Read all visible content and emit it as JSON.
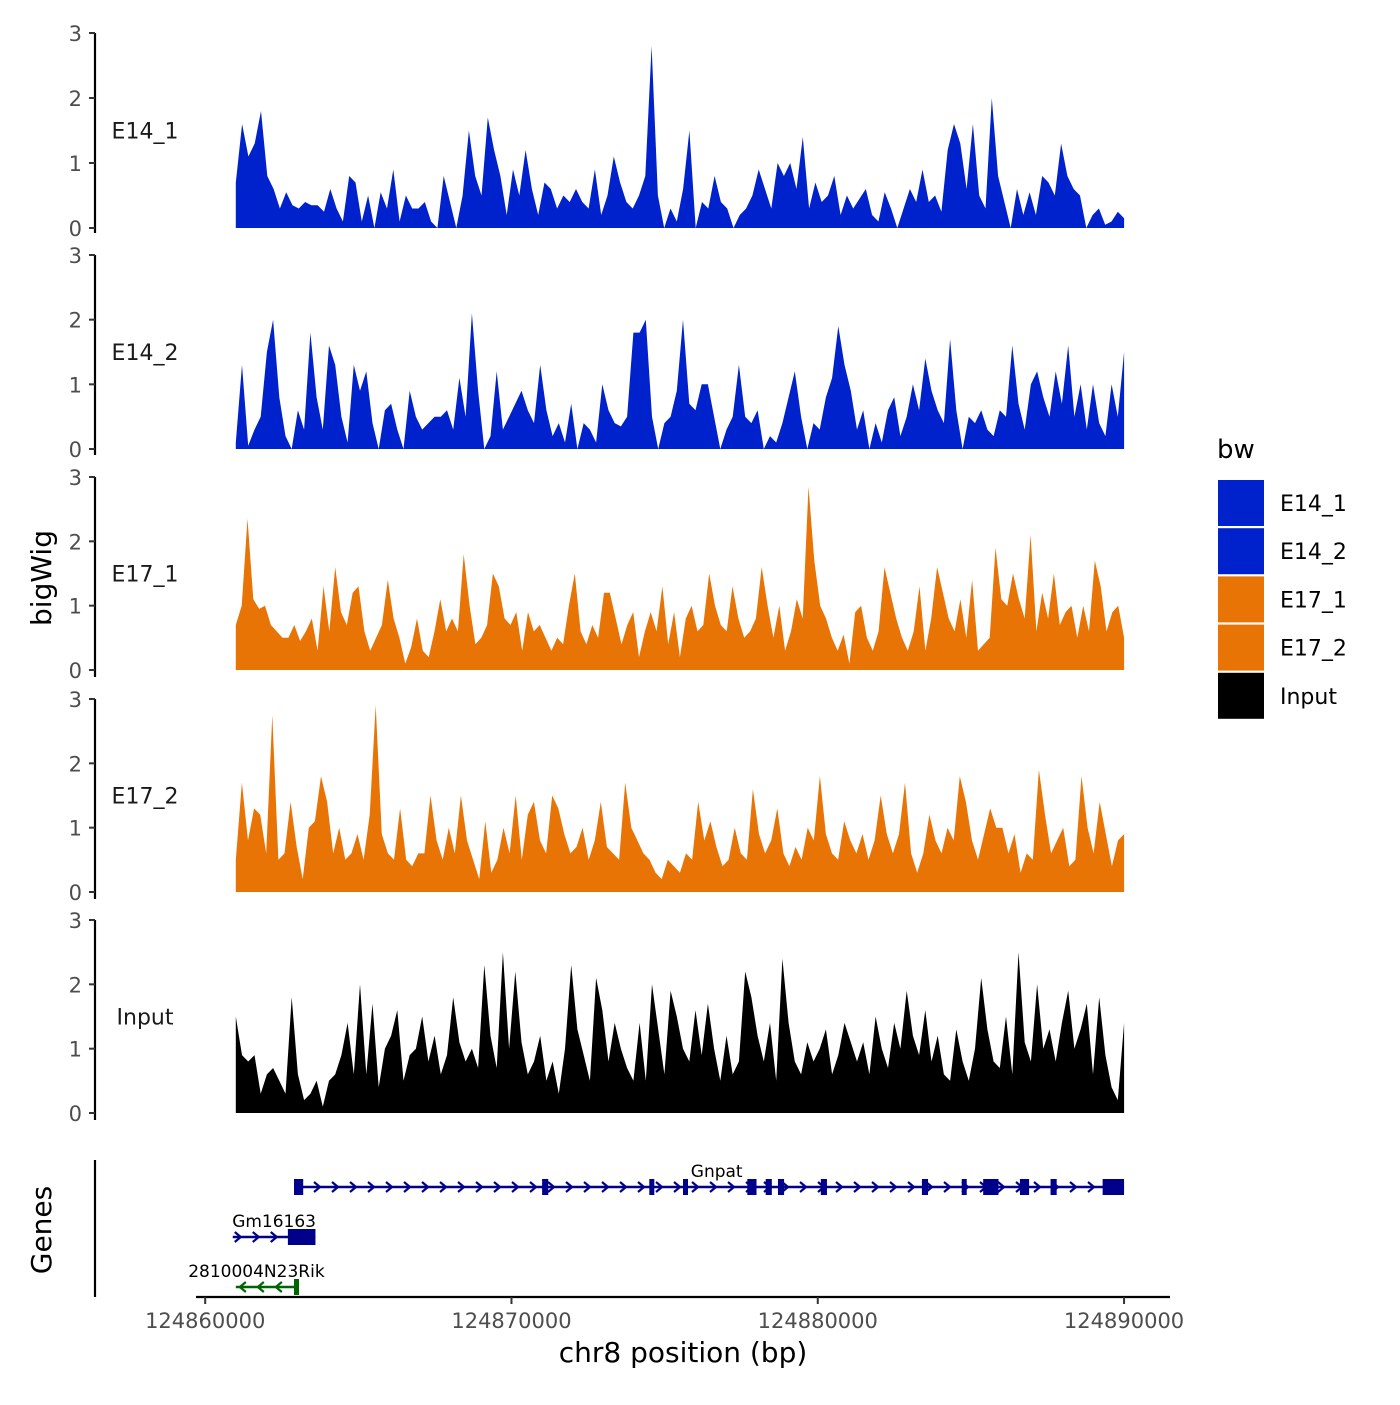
{
  "chart_data": {
    "type": "area",
    "chromosome": "chr8",
    "xlabel": "chr8 position (bp)",
    "ylabel": "bigWig",
    "genes_label": "Genes",
    "xlim": [
      124859700,
      124891500
    ],
    "x_ticks": [
      124860000,
      124870000,
      124880000,
      124890000
    ],
    "x_tick_labels": [
      "124860000",
      "124870000",
      "124880000",
      "124890000"
    ],
    "ylim": [
      0,
      3
    ],
    "y_ticks": [
      0,
      1,
      2,
      3
    ],
    "y_tick_labels": [
      "0",
      "1",
      "2",
      "3"
    ],
    "legend": {
      "title": "bw",
      "position": "right",
      "entries": [
        {
          "label": "E14_1",
          "color": "#0022CC"
        },
        {
          "label": "E14_2",
          "color": "#0022CC"
        },
        {
          "label": "E17_1",
          "color": "#E87405"
        },
        {
          "label": "E17_2",
          "color": "#E87405"
        },
        {
          "label": "Input",
          "color": "#000000"
        }
      ]
    },
    "series": [
      {
        "name": "E14_1",
        "color": "#0022CC",
        "x_start": 124861000,
        "x_end": 124890000,
        "values": [
          0.7,
          1.6,
          1.1,
          1.3,
          1.8,
          0.8,
          0.6,
          0.3,
          0.55,
          0.35,
          0.3,
          0.4,
          0.35,
          0.35,
          0.25,
          0.6,
          0.3,
          0.1,
          0.8,
          0.7,
          0.1,
          0.5,
          0,
          0.55,
          0.3,
          0.9,
          0.1,
          0.5,
          0.3,
          0.3,
          0.4,
          0.1,
          0,
          0.8,
          0.4,
          0,
          0.5,
          1.5,
          0.8,
          0.5,
          1.7,
          1.2,
          0.8,
          0.2,
          0.9,
          0.5,
          1.2,
          0.6,
          0.2,
          0.7,
          0.6,
          0.3,
          0.5,
          0.4,
          0.6,
          0.4,
          0.3,
          0.9,
          0.2,
          0.5,
          1.1,
          0.7,
          0.4,
          0.3,
          0.5,
          0.8,
          2.8,
          0.5,
          0,
          0.3,
          0.1,
          0.6,
          1.5,
          0,
          0.4,
          0.3,
          0.8,
          0.4,
          0.3,
          0,
          0.2,
          0.3,
          0.5,
          0.9,
          0.6,
          0.3,
          1.0,
          0.8,
          1.0,
          0.6,
          1.4,
          0.3,
          0.7,
          0.4,
          0.5,
          0.8,
          0.2,
          0.5,
          0.3,
          0.45,
          0.6,
          0.2,
          0.1,
          0.55,
          0.3,
          0,
          0.3,
          0.6,
          0.4,
          0.9,
          0.4,
          0.5,
          0.25,
          1.2,
          1.6,
          1.3,
          0.6,
          1.6,
          0.5,
          0.3,
          2.0,
          0.8,
          0.4,
          0,
          0.6,
          0.2,
          0.55,
          0.2,
          0.8,
          0.7,
          0.5,
          1.3,
          0.8,
          0.6,
          0.5,
          0,
          0.2,
          0.3,
          0.05,
          0.1,
          0.25,
          0.15
        ]
      },
      {
        "name": "E14_2",
        "color": "#0022CC",
        "x_start": 124861000,
        "x_end": 124890000,
        "values": [
          0.1,
          1.3,
          0.05,
          0.3,
          0.5,
          1.5,
          2.0,
          0.8,
          0.2,
          0,
          0.6,
          0.3,
          1.8,
          0.8,
          0.3,
          1.6,
          1.3,
          0.5,
          0.1,
          1.3,
          0.9,
          1.2,
          0.4,
          0,
          0.6,
          0.7,
          0.3,
          0,
          0.9,
          0.5,
          0.3,
          0.4,
          0.5,
          0.5,
          0.6,
          0.3,
          1.1,
          0.5,
          2.1,
          0.9,
          0,
          0.2,
          1.2,
          0.3,
          0.5,
          0.7,
          0.9,
          0.6,
          0.4,
          1.3,
          0.6,
          0.2,
          0.4,
          0.1,
          0.7,
          0,
          0.4,
          0.3,
          0.1,
          1.0,
          0.6,
          0.4,
          0.35,
          0.5,
          1.8,
          1.8,
          2.0,
          0.5,
          0,
          0.4,
          0.5,
          0.9,
          2.0,
          0.7,
          0.6,
          1.0,
          1.0,
          0.5,
          0,
          0.3,
          0.5,
          1.3,
          0.5,
          0.4,
          0.6,
          0,
          0.2,
          0.1,
          0.4,
          0.8,
          1.2,
          0.5,
          0,
          0.4,
          0.3,
          0.8,
          1.1,
          1.9,
          1.3,
          0.9,
          0.3,
          0.6,
          0,
          0.4,
          0.1,
          0.6,
          0.8,
          0.2,
          0.5,
          1.0,
          0.6,
          1.4,
          0.9,
          0.6,
          0.4,
          1.7,
          0.6,
          0,
          0.5,
          0.4,
          0.6,
          0.3,
          0.2,
          0.6,
          0.5,
          1.6,
          0.7,
          0.3,
          1.0,
          1.2,
          0.8,
          0.5,
          1.2,
          0.7,
          1.6,
          0.5,
          1.0,
          0.3,
          1.0,
          0.4,
          0.2,
          1.0,
          0.5,
          1.5
        ]
      },
      {
        "name": "E17_1",
        "color": "#E87405",
        "x_start": 124861000,
        "x_end": 124890000,
        "values": [
          0.7,
          1.0,
          2.35,
          1.1,
          0.95,
          1.0,
          0.7,
          0.6,
          0.5,
          0.5,
          0.7,
          0.45,
          0.6,
          0.8,
          0.3,
          1.3,
          0.6,
          1.6,
          0.9,
          0.7,
          1.2,
          1.3,
          0.6,
          0.3,
          0.5,
          0.7,
          1.4,
          0.8,
          0.5,
          0.1,
          0.35,
          0.8,
          0.3,
          0.2,
          0.6,
          1.1,
          0.6,
          0.8,
          0.6,
          1.8,
          1.0,
          0.4,
          0.5,
          0.7,
          1.5,
          1.3,
          0.8,
          0.7,
          0.9,
          0.3,
          0.9,
          0.6,
          0.7,
          0.5,
          0.3,
          0.5,
          0.4,
          1.0,
          1.5,
          0.6,
          0.4,
          0.7,
          0.5,
          1.2,
          1.2,
          0.8,
          0.4,
          0.7,
          0.9,
          0.2,
          0.6,
          0.9,
          0.6,
          1.3,
          0.4,
          0.9,
          0.2,
          0.8,
          1.0,
          0.6,
          0.7,
          1.5,
          1.0,
          0.7,
          0.6,
          1.3,
          0.8,
          0.5,
          0.6,
          0.8,
          1.6,
          1.0,
          0.5,
          1.0,
          0.3,
          0.6,
          1.1,
          0.8,
          2.85,
          1.7,
          1.0,
          0.8,
          0.5,
          0.3,
          0.55,
          0.1,
          0.9,
          1.0,
          0.5,
          0.3,
          0.6,
          1.6,
          1.2,
          0.8,
          0.5,
          0.3,
          0.6,
          1.3,
          0.3,
          0.8,
          1.6,
          1.2,
          0.8,
          0.6,
          1.1,
          0.5,
          1.4,
          0.3,
          0.4,
          0.5,
          1.9,
          1.1,
          1.0,
          1.5,
          1.1,
          0.8,
          2.1,
          0.6,
          1.2,
          0.8,
          1.5,
          0.7,
          0.9,
          1.0,
          0.5,
          1.0,
          0.6,
          1.7,
          1.3,
          0.6,
          0.9,
          1.0,
          0.5
        ]
      },
      {
        "name": "E17_2",
        "color": "#E87405",
        "x_start": 124861000,
        "x_end": 124890000,
        "values": [
          0.5,
          1.7,
          0.8,
          1.3,
          1.2,
          0.6,
          2.75,
          0.5,
          0.6,
          1.4,
          0.7,
          0.2,
          1.0,
          1.1,
          1.8,
          1.4,
          0.6,
          1.0,
          0.5,
          0.6,
          0.9,
          0.5,
          1.2,
          2.9,
          0.9,
          0.6,
          0.5,
          1.3,
          0.5,
          0.4,
          0.6,
          0.6,
          1.5,
          0.8,
          0.5,
          1.0,
          0.6,
          1.5,
          0.8,
          0.5,
          0.2,
          1.1,
          0.3,
          0.5,
          1.0,
          0.6,
          1.5,
          0.5,
          1.2,
          1.4,
          0.8,
          0.6,
          1.5,
          1.3,
          0.9,
          0.6,
          0.7,
          1.0,
          0.5,
          0.8,
          1.4,
          0.7,
          0.6,
          0.5,
          1.7,
          1.0,
          0.8,
          0.6,
          0.5,
          0.3,
          0.2,
          0.5,
          0.4,
          0.3,
          0.6,
          0.5,
          1.4,
          0.8,
          1.1,
          0.7,
          0.4,
          0.5,
          1.0,
          0.6,
          0.5,
          1.6,
          0.9,
          0.6,
          0.8,
          1.3,
          0.6,
          0.4,
          0.7,
          0.5,
          1.0,
          0.8,
          1.8,
          0.9,
          0.6,
          0.5,
          1.1,
          0.8,
          0.6,
          0.9,
          0.5,
          0.8,
          1.5,
          0.9,
          0.6,
          0.9,
          1.7,
          0.6,
          0.3,
          0.6,
          1.2,
          0.8,
          0.6,
          1.0,
          0.8,
          1.8,
          1.4,
          0.8,
          0.5,
          0.9,
          1.3,
          1.0,
          1.0,
          0.6,
          0.9,
          0.3,
          0.6,
          0.5,
          1.9,
          1.2,
          0.6,
          0.8,
          1.0,
          0.4,
          0.5,
          1.8,
          1.0,
          0.6,
          1.4,
          0.9,
          0.4,
          0.8,
          0.9
        ]
      },
      {
        "name": "Input",
        "color": "#000000",
        "x_start": 124861000,
        "x_end": 124890000,
        "values": [
          1.5,
          0.9,
          0.8,
          0.9,
          0.3,
          0.6,
          0.7,
          0.5,
          0.3,
          1.8,
          0.6,
          0.2,
          0.3,
          0.5,
          0.1,
          0.5,
          0.6,
          0.9,
          1.4,
          0.6,
          2.0,
          0.6,
          1.7,
          0.4,
          1.0,
          1.2,
          1.6,
          0.5,
          0.9,
          1.0,
          1.5,
          0.8,
          1.2,
          0.6,
          0.9,
          1.8,
          1.1,
          0.8,
          1.0,
          0.7,
          2.3,
          1.2,
          0.7,
          2.5,
          1.0,
          2.2,
          1.1,
          0.6,
          0.8,
          1.2,
          0.5,
          0.8,
          0.3,
          1.0,
          2.3,
          1.3,
          0.9,
          0.5,
          2.1,
          1.6,
          0.8,
          1.4,
          1.0,
          0.7,
          0.5,
          1.4,
          0.5,
          2.0,
          1.3,
          0.6,
          1.9,
          1.5,
          1.0,
          0.8,
          1.6,
          0.9,
          1.7,
          1.0,
          0.5,
          1.2,
          0.6,
          0.8,
          2.2,
          1.8,
          1.2,
          0.8,
          1.4,
          0.5,
          2.4,
          1.4,
          0.8,
          0.6,
          1.1,
          0.8,
          1.0,
          1.3,
          0.6,
          0.9,
          1.4,
          1.1,
          0.8,
          1.1,
          0.6,
          1.5,
          1.0,
          0.7,
          1.4,
          1.0,
          1.9,
          1.2,
          0.9,
          1.6,
          0.8,
          1.2,
          0.6,
          0.5,
          1.3,
          0.8,
          0.5,
          1.0,
          2.1,
          1.3,
          0.8,
          0.7,
          1.5,
          0.6,
          2.5,
          1.1,
          0.8,
          2.0,
          1.0,
          1.3,
          0.8,
          1.4,
          1.9,
          1.0,
          1.3,
          1.7,
          0.6,
          1.8,
          0.9,
          0.4,
          0.2,
          1.4
        ]
      }
    ],
    "genes": [
      {
        "name": "Gnpat",
        "strand": "+",
        "row": 0,
        "color": "#00008B",
        "start": 124862900,
        "end": 124890000,
        "exons": [
          [
            124862900,
            124863200
          ],
          [
            124871000,
            124871200
          ],
          [
            124874500,
            124874600
          ],
          [
            124875600,
            124875700
          ],
          [
            124877700,
            124878000
          ],
          [
            124878300,
            124878500
          ],
          [
            124878700,
            124878900
          ],
          [
            124880100,
            124880300
          ],
          [
            124883400,
            124883600
          ],
          [
            124884700,
            124884800
          ],
          [
            124885400,
            124885900
          ],
          [
            124886600,
            124886900
          ],
          [
            124887600,
            124887800
          ],
          [
            124889300,
            124890000
          ]
        ]
      },
      {
        "name": "Gm16163",
        "strand": "+",
        "row": 1,
        "color": "#00008B",
        "start": 124860900,
        "end": 124863600,
        "exons": [
          [
            124862700,
            124863600
          ]
        ]
      },
      {
        "name": "2810004N23Rik",
        "strand": "-",
        "row": 2,
        "color": "#006400",
        "start": 124861000,
        "end": 124863000,
        "exons": [
          [
            124862900,
            124863000
          ]
        ]
      }
    ]
  }
}
